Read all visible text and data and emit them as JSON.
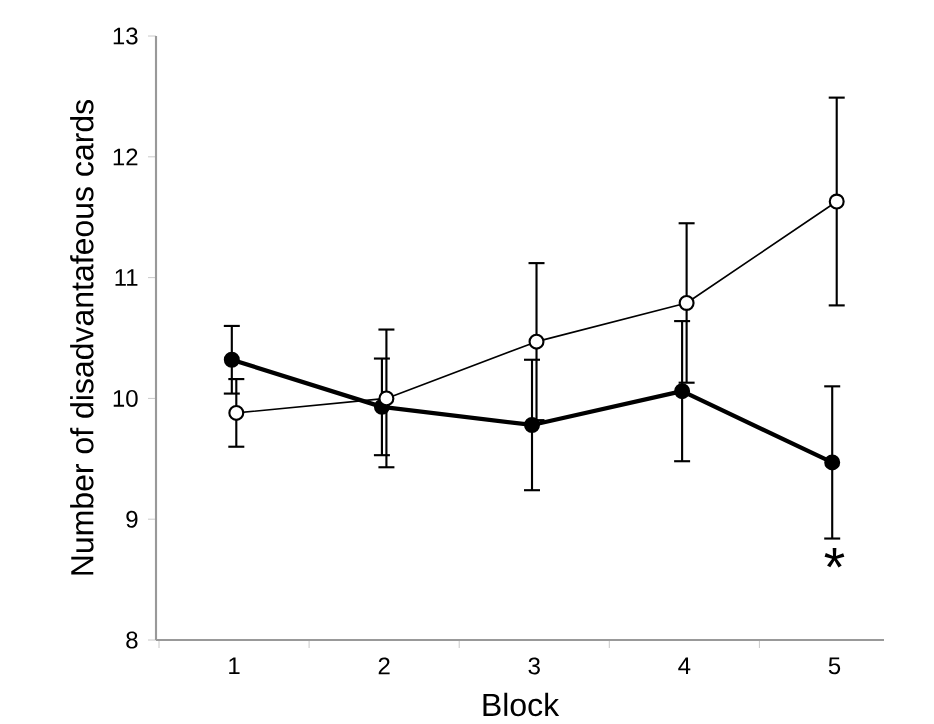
{
  "chart_data": {
    "type": "line",
    "xlabel": "Block",
    "ylabel": "Number of disadvantafeous cards",
    "categories": [
      "1",
      "2",
      "3",
      "4",
      "5"
    ],
    "series": [
      {
        "color": "#000000",
        "values": [
          10.32,
          9.93,
          9.78,
          10.06,
          9.47
        ],
        "errors": [
          0.28,
          0.4,
          0.54,
          0.58,
          0.63
        ]
      },
      {
        "color": "#000000",
        "values": [
          9.88,
          10.0,
          10.47,
          10.79,
          11.63
        ],
        "errors": [
          0.28,
          0.57,
          0.65,
          0.66,
          0.86
        ]
      }
    ],
    "ylim": [
      8,
      13
    ],
    "yticks": [
      8,
      9,
      10,
      11,
      12,
      13
    ],
    "grid": false,
    "marker": "circle",
    "line_style": "solid",
    "annotations": [
      "*"
    ]
  }
}
